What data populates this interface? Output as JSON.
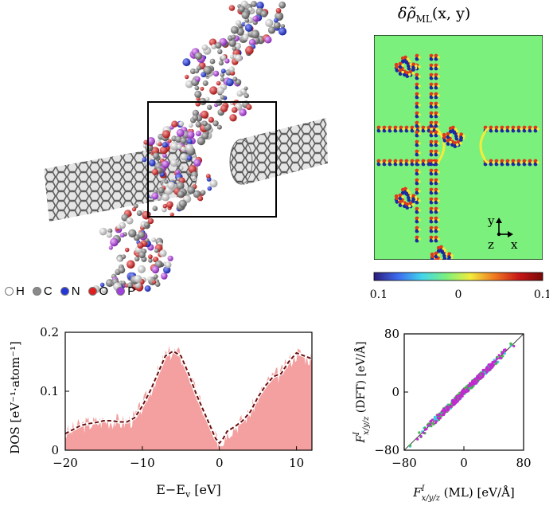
{
  "panel_a": {
    "legend": [
      {
        "symbol": "H",
        "color": "#ffffff"
      },
      {
        "symbol": "C",
        "color": "#8a8a8a"
      },
      {
        "symbol": "N",
        "color": "#2436d6"
      },
      {
        "symbol": "O",
        "color": "#e01e1e"
      },
      {
        "symbol": "P",
        "color": "#a23fe0"
      }
    ]
  },
  "panel_b": {
    "title_main": "δρ̃",
    "title_sub": "ML",
    "title_args": "(x, y)",
    "axes_glyph": {
      "y": "y",
      "z": "z",
      "x": "x"
    },
    "colorbar": {
      "ticks": [
        "−0.1",
        "0",
        "0.1"
      ],
      "colors": [
        "#2c1b7a",
        "#3d6cf0",
        "#43d6ec",
        "#7cf07c",
        "#f2ec3c",
        "#f07a22",
        "#c81818",
        "#7a0808"
      ]
    },
    "field_color": "#7cf07c"
  },
  "chart_data": [
    {
      "type": "area",
      "ylabel": "DOS [eV⁻¹·atom⁻¹]",
      "xlabel": "E−E",
      "xlabel_sub": "v",
      "xlabel_unit": " [eV]",
      "xlim": [
        -20,
        12
      ],
      "ylim": [
        0,
        0.2
      ],
      "xticks": [
        "−20",
        "−10",
        "0",
        "10"
      ],
      "xtick_values": [
        -20,
        -10,
        0,
        10
      ],
      "yticks": [
        "0",
        "0.1",
        "0.2"
      ],
      "ytick_values": [
        0,
        0.1,
        0.2
      ],
      "fill_color": "#f4a0a0",
      "line_color": "#6b0f0f",
      "series": [
        {
          "x": [
            -20,
            -19,
            -18,
            -17,
            -16,
            -15,
            -14,
            -13,
            -12,
            -11,
            -10,
            -9,
            -8,
            -7,
            -6,
            -5,
            -4,
            -3,
            -2,
            -1,
            -0.5,
            0,
            0.5,
            1,
            2,
            3,
            4,
            5,
            6,
            7,
            8,
            9,
            10,
            11,
            12
          ],
          "y": [
            0.028,
            0.035,
            0.042,
            0.045,
            0.047,
            0.05,
            0.05,
            0.048,
            0.048,
            0.055,
            0.075,
            0.1,
            0.13,
            0.16,
            0.168,
            0.16,
            0.13,
            0.095,
            0.065,
            0.035,
            0.02,
            0.012,
            0.02,
            0.032,
            0.04,
            0.05,
            0.065,
            0.09,
            0.11,
            0.125,
            0.13,
            0.15,
            0.165,
            0.16,
            0.155
          ]
        }
      ]
    },
    {
      "type": "scatter",
      "xlabel": "F",
      "xlabel_sub": "x/y/z",
      "xlabel_sup": "I",
      "xlabel_unit": " (ML) [eV/Å]",
      "ylabel": "F",
      "ylabel_sub": "x/y/z",
      "ylabel_sup": "I",
      "ylabel_unit": " (DFT) [eV/Å]",
      "xlim": [
        -80,
        80
      ],
      "ylim": [
        -80,
        80
      ],
      "xticks": [
        "−80",
        "0",
        "80"
      ],
      "xtick_values": [
        -80,
        0,
        80
      ],
      "yticks": [
        "−80",
        "0",
        "80"
      ],
      "ytick_values": [
        -80,
        0,
        80
      ],
      "series": [
        {
          "color": "#3ccde0"
        },
        {
          "color": "#4caf50"
        },
        {
          "color": "#c02ad0"
        }
      ]
    }
  ]
}
